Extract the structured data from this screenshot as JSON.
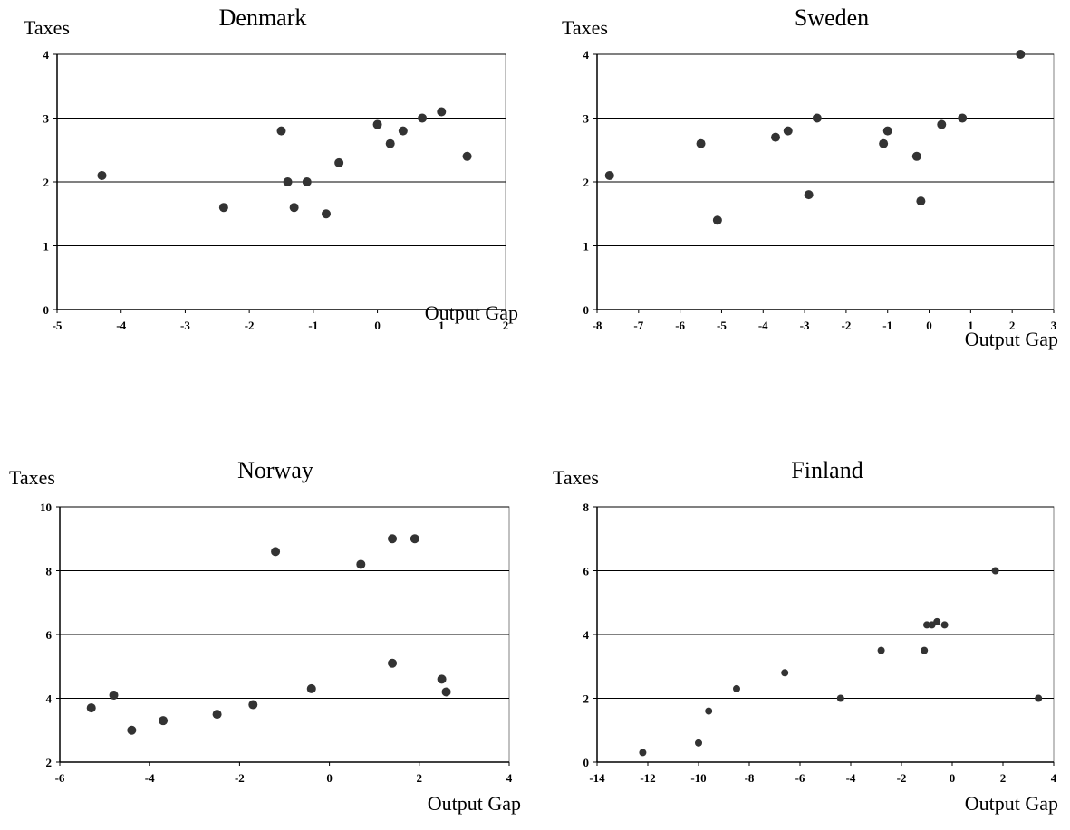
{
  "chart_data": [
    {
      "type": "scatter",
      "title": "Denmark",
      "xlabel": "Output Gap",
      "ylabel": "Taxes",
      "xlim": [
        -5,
        2
      ],
      "ylim": [
        0,
        4
      ],
      "xticks": [
        -5,
        -4,
        -3,
        -2,
        -1,
        0,
        1,
        2
      ],
      "yticks": [
        0,
        1,
        2,
        3,
        4
      ],
      "grid": true,
      "points": [
        {
          "x": -4.3,
          "y": 2.1
        },
        {
          "x": -2.4,
          "y": 1.6
        },
        {
          "x": -1.5,
          "y": 2.8
        },
        {
          "x": -1.4,
          "y": 2.0
        },
        {
          "x": -1.3,
          "y": 1.6
        },
        {
          "x": -1.1,
          "y": 2.0
        },
        {
          "x": -0.8,
          "y": 1.5
        },
        {
          "x": -0.6,
          "y": 2.3
        },
        {
          "x": 0.0,
          "y": 2.9
        },
        {
          "x": 0.2,
          "y": 2.6
        },
        {
          "x": 0.4,
          "y": 2.8
        },
        {
          "x": 0.7,
          "y": 3.0
        },
        {
          "x": 1.0,
          "y": 3.1
        },
        {
          "x": 1.4,
          "y": 2.4
        }
      ]
    },
    {
      "type": "scatter",
      "title": "Sweden",
      "xlabel": "Output Gap",
      "ylabel": "Taxes",
      "xlim": [
        -8,
        3
      ],
      "ylim": [
        0,
        4
      ],
      "xticks": [
        -8,
        -7,
        -6,
        -5,
        -4,
        -3,
        -2,
        -1,
        0,
        1,
        2,
        3
      ],
      "yticks": [
        0,
        1,
        2,
        3,
        4
      ],
      "grid": true,
      "points": [
        {
          "x": -7.7,
          "y": 2.1
        },
        {
          "x": -5.5,
          "y": 2.6
        },
        {
          "x": -5.1,
          "y": 1.4
        },
        {
          "x": -3.7,
          "y": 2.7
        },
        {
          "x": -3.4,
          "y": 2.8
        },
        {
          "x": -2.9,
          "y": 1.8
        },
        {
          "x": -2.7,
          "y": 3.0
        },
        {
          "x": -1.1,
          "y": 2.6
        },
        {
          "x": -1.0,
          "y": 2.8
        },
        {
          "x": -0.3,
          "y": 2.4
        },
        {
          "x": -0.2,
          "y": 1.7
        },
        {
          "x": 0.3,
          "y": 2.9
        },
        {
          "x": 0.8,
          "y": 3.0
        },
        {
          "x": 2.2,
          "y": 4.0
        }
      ]
    },
    {
      "type": "scatter",
      "title": "Norway",
      "xlabel": "Output Gap",
      "ylabel": "Taxes",
      "xlim": [
        -6,
        4
      ],
      "ylim": [
        2,
        10
      ],
      "xticks": [
        -6,
        -4,
        -2,
        0,
        2,
        4
      ],
      "yticks": [
        2,
        4,
        6,
        8,
        10
      ],
      "grid": true,
      "points": [
        {
          "x": -5.3,
          "y": 3.7
        },
        {
          "x": -4.8,
          "y": 4.1
        },
        {
          "x": -4.4,
          "y": 3.0
        },
        {
          "x": -3.7,
          "y": 3.3
        },
        {
          "x": -2.5,
          "y": 3.5
        },
        {
          "x": -1.7,
          "y": 3.8
        },
        {
          "x": -1.2,
          "y": 8.6
        },
        {
          "x": -0.4,
          "y": 4.3
        },
        {
          "x": 0.7,
          "y": 8.2
        },
        {
          "x": 1.4,
          "y": 9.0
        },
        {
          "x": 1.9,
          "y": 9.0
        },
        {
          "x": 1.4,
          "y": 5.1
        },
        {
          "x": 2.5,
          "y": 4.6
        },
        {
          "x": 2.6,
          "y": 4.2
        }
      ]
    },
    {
      "type": "scatter",
      "title": "Finland",
      "xlabel": "Output Gap",
      "ylabel": "Taxes",
      "xlim": [
        -14,
        4
      ],
      "ylim": [
        0,
        8
      ],
      "xticks": [
        -14,
        -12,
        -10,
        -8,
        -6,
        -4,
        -2,
        0,
        2,
        4
      ],
      "yticks": [
        0,
        2,
        4,
        6,
        8
      ],
      "grid": true,
      "points": [
        {
          "x": -12.2,
          "y": 0.3
        },
        {
          "x": -10.0,
          "y": 0.6
        },
        {
          "x": -9.6,
          "y": 1.6
        },
        {
          "x": -8.5,
          "y": 2.3
        },
        {
          "x": -6.6,
          "y": 2.8
        },
        {
          "x": -4.4,
          "y": 2.0
        },
        {
          "x": -2.8,
          "y": 3.5
        },
        {
          "x": -1.1,
          "y": 3.5
        },
        {
          "x": -1.0,
          "y": 4.3
        },
        {
          "x": -0.8,
          "y": 4.3
        },
        {
          "x": -0.6,
          "y": 4.4
        },
        {
          "x": -0.3,
          "y": 4.3
        },
        {
          "x": 1.7,
          "y": 6.0
        },
        {
          "x": 3.4,
          "y": 2.0
        }
      ]
    }
  ]
}
